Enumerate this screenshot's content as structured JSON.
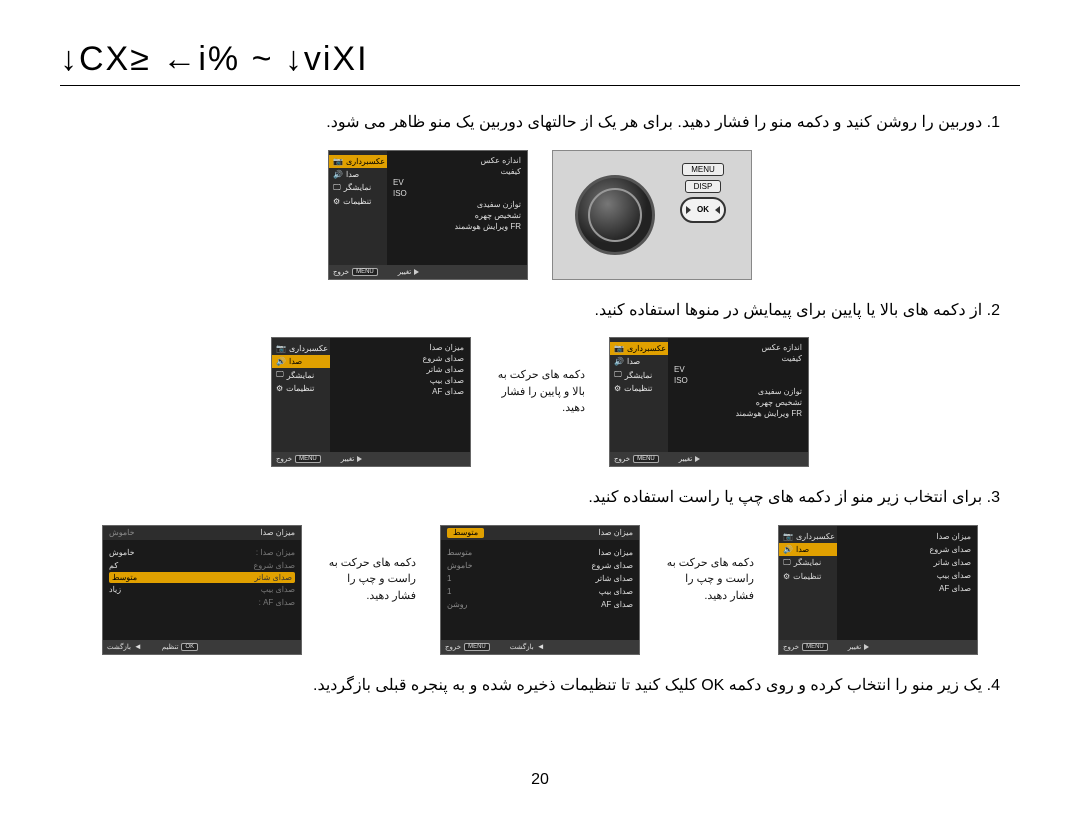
{
  "title_decorative": "↓CX≥ ←i% ~ ↓viXI",
  "page_number": "20",
  "steps": {
    "s1": "1. دوربین را روشن کنید و دکمه منو را فشار دهید. برای هر یک از حالتهای دوربین یک منو ظاهر می شود.",
    "s2": "2. از دکمه های بالا یا پایین برای پیمایش در منوها استفاده کنید.",
    "s3": "3. برای انتخاب زیر منو از دکمه های چپ یا راست استفاده کنید.",
    "s4": "4. یک زیر منو را انتخاب کرده و روی دکمه OK کلیک کنید تا تنظیمات ذخیره شده و به پنجره قبلی بازگردید."
  },
  "arrow_instructions": {
    "updown": "دکمه های حرکت به بالا و پایین را فشار دهید.",
    "leftright": "دکمه های حرکت به راست و چپ را فشار دهید."
  },
  "sidebar_tabs": {
    "camera": "عکسبرداری",
    "sound": "صدا",
    "display": "نمایشگر",
    "settings": "تنظیمات"
  },
  "step1_menu": {
    "items": [
      "اندازه عکس",
      "کیفیت",
      "EV",
      "ISO",
      "توازن سفیدی",
      "تشخیص چهره",
      "FR ویرایش هوشمند"
    ]
  },
  "step2_sound_menu": {
    "items": [
      "میزان صدا",
      "صدای شروع",
      "صدای شاتر",
      "صدای بیپ",
      "صدای AF"
    ]
  },
  "step3_sound_values": {
    "rows": [
      {
        "label": "میزان صدا",
        "value": "متوسط"
      },
      {
        "label": "صدای شروع",
        "value": "خاموش"
      },
      {
        "label": "صدای شاتر",
        "value": "1"
      },
      {
        "label": "صدای بیپ",
        "value": "1"
      },
      {
        "label": "صدای AF",
        "value": "روشن"
      }
    ]
  },
  "step3_volume_panel": {
    "header": {
      "label": "میزان صدا",
      "active": "متوسط"
    },
    "rows": [
      "خاموش",
      "کم",
      "متوسط",
      "زیاد"
    ],
    "right_labels": [
      "میزان صدا :",
      "صدای شروع",
      "صدای شاتر",
      "صدای بیپ",
      "صدای AF :"
    ]
  },
  "footer": {
    "exit": "خروج",
    "change": "تغيير",
    "back": "بازگشت",
    "set": "تنظیم",
    "menu_btn": "MENU",
    "ok_btn": "OK"
  },
  "camera_buttons": {
    "menu": "MENU",
    "disp": "DISP",
    "ok": "OK"
  },
  "colors": {
    "panel_bg": "#1a1a1a",
    "sidebar_bg": "#2a2a2a",
    "highlight": "#e0a000",
    "text_light": "#e8e8e8",
    "footer_bg": "#3a3a3a"
  }
}
